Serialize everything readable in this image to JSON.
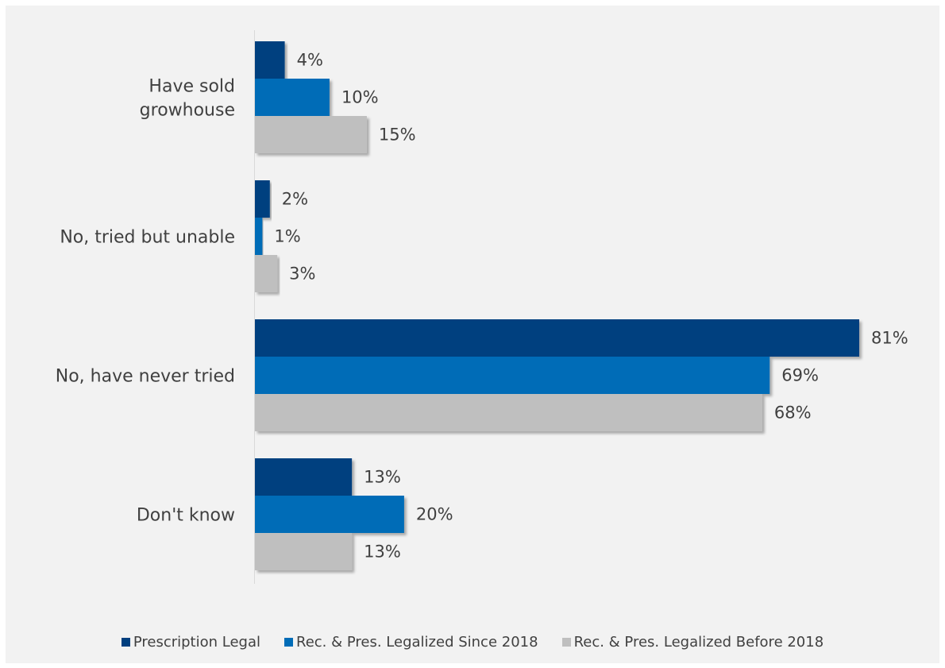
{
  "chart_data": {
    "type": "bar",
    "orientation": "horizontal",
    "categories": [
      "Have sold growhouse",
      "No, tried but unable",
      "No, have never tried",
      "Don't know"
    ],
    "category_lines": [
      [
        "Have sold",
        "growhouse"
      ],
      [
        "No, tried but unable"
      ],
      [
        "No, have never tried"
      ],
      [
        "Don't know"
      ]
    ],
    "series": [
      {
        "name": "Prescription Legal",
        "color": "#003f7f",
        "values": [
          4,
          2,
          81,
          13
        ],
        "labels": [
          "4%",
          "2%",
          "81%",
          "13%"
        ]
      },
      {
        "name": "Rec. & Pres. Legalized Since 2018",
        "color": "#006cb7",
        "values": [
          10,
          1,
          69,
          20
        ],
        "labels": [
          "10%",
          "1%",
          "69%",
          "20%"
        ]
      },
      {
        "name": "Rec. & Pres. Legalized Before 2018",
        "color": "#bfbfbf",
        "values": [
          15,
          3,
          68,
          13
        ],
        "labels": [
          "15%",
          "3%",
          "68%",
          "13%"
        ]
      }
    ],
    "xlim": [
      0,
      85
    ],
    "value_suffix": "%",
    "grid": false,
    "legend_position": "bottom",
    "title": "",
    "xlabel": "",
    "ylabel": ""
  }
}
